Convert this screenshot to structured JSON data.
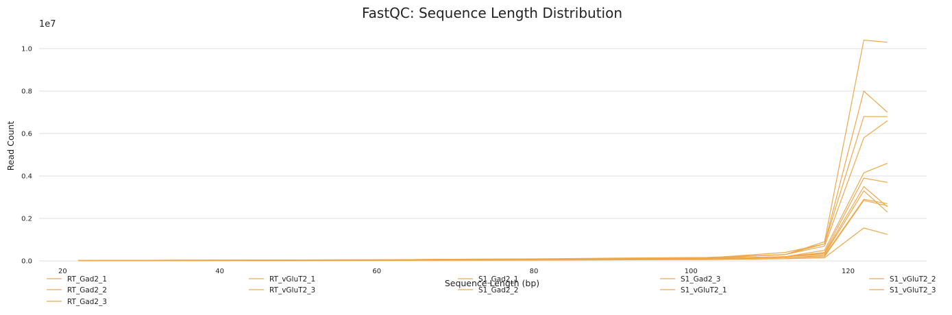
{
  "chart_data": {
    "type": "line",
    "title": "FastQC: Sequence Length Distribution",
    "xlabel": "Sequence Length (bp)",
    "ylabel": "Read Count",
    "y_scale_label": "1e7",
    "xlim": [
      17,
      130
    ],
    "ylim": [
      0,
      1.1
    ],
    "x_ticks": [
      20,
      40,
      60,
      80,
      100,
      120
    ],
    "y_ticks": [
      0.0,
      0.2,
      0.4,
      0.6,
      0.8,
      1.0
    ],
    "x_tick_labels": [
      "20",
      "40",
      "60",
      "80",
      "100",
      "120"
    ],
    "y_tick_labels": [
      "0.0",
      "0.2",
      "0.4",
      "0.6",
      "0.8",
      "1.0"
    ],
    "grid": "horizontal",
    "legend_position": "bottom",
    "line_color": "#eda84a",
    "x": [
      22,
      42,
      62,
      67,
      82,
      92,
      102,
      112,
      117,
      122,
      125
    ],
    "series": [
      {
        "name": "RT_Gad2_1",
        "values": [
          0.002,
          0.004,
          0.005,
          0.007,
          0.01,
          0.014,
          0.016,
          0.03,
          0.09,
          1.04,
          1.03
        ]
      },
      {
        "name": "RT_Gad2_2",
        "values": [
          0.002,
          0.004,
          0.005,
          0.007,
          0.009,
          0.012,
          0.014,
          0.03,
          0.08,
          0.8,
          0.7
        ]
      },
      {
        "name": "RT_Gad2_3",
        "values": [
          0.002,
          0.004,
          0.005,
          0.007,
          0.009,
          0.012,
          0.014,
          0.04,
          0.08,
          0.68,
          0.68
        ]
      },
      {
        "name": "RT_vGluT2_1",
        "values": [
          0.002,
          0.003,
          0.004,
          0.006,
          0.008,
          0.01,
          0.012,
          0.03,
          0.07,
          0.58,
          0.66
        ]
      },
      {
        "name": "RT_vGluT2_3",
        "values": [
          0.001,
          0.003,
          0.004,
          0.006,
          0.008,
          0.01,
          0.012,
          0.02,
          0.05,
          0.415,
          0.46
        ]
      },
      {
        "name": "S1_Gad2_1",
        "values": [
          0.001,
          0.003,
          0.004,
          0.005,
          0.007,
          0.009,
          0.011,
          0.02,
          0.04,
          0.39,
          0.37
        ]
      },
      {
        "name": "S1_Gad2_2",
        "values": [
          0.001,
          0.002,
          0.003,
          0.005,
          0.006,
          0.008,
          0.01,
          0.02,
          0.035,
          0.35,
          0.255
        ]
      },
      {
        "name": "S1_Gad2_3",
        "values": [
          0.001,
          0.002,
          0.003,
          0.004,
          0.006,
          0.008,
          0.01,
          0.02,
          0.03,
          0.33,
          0.23
        ]
      },
      {
        "name": "S1_vGluT2_1",
        "values": [
          0.001,
          0.002,
          0.003,
          0.004,
          0.005,
          0.007,
          0.009,
          0.015,
          0.025,
          0.29,
          0.27
        ]
      },
      {
        "name": "S1_vGluT2_2",
        "values": [
          0.001,
          0.002,
          0.003,
          0.004,
          0.005,
          0.007,
          0.008,
          0.015,
          0.02,
          0.285,
          0.26
        ]
      },
      {
        "name": "S1_vGluT2_3",
        "values": [
          0.001,
          0.001,
          0.002,
          0.003,
          0.004,
          0.005,
          0.006,
          0.01,
          0.015,
          0.155,
          0.125
        ]
      }
    ]
  }
}
